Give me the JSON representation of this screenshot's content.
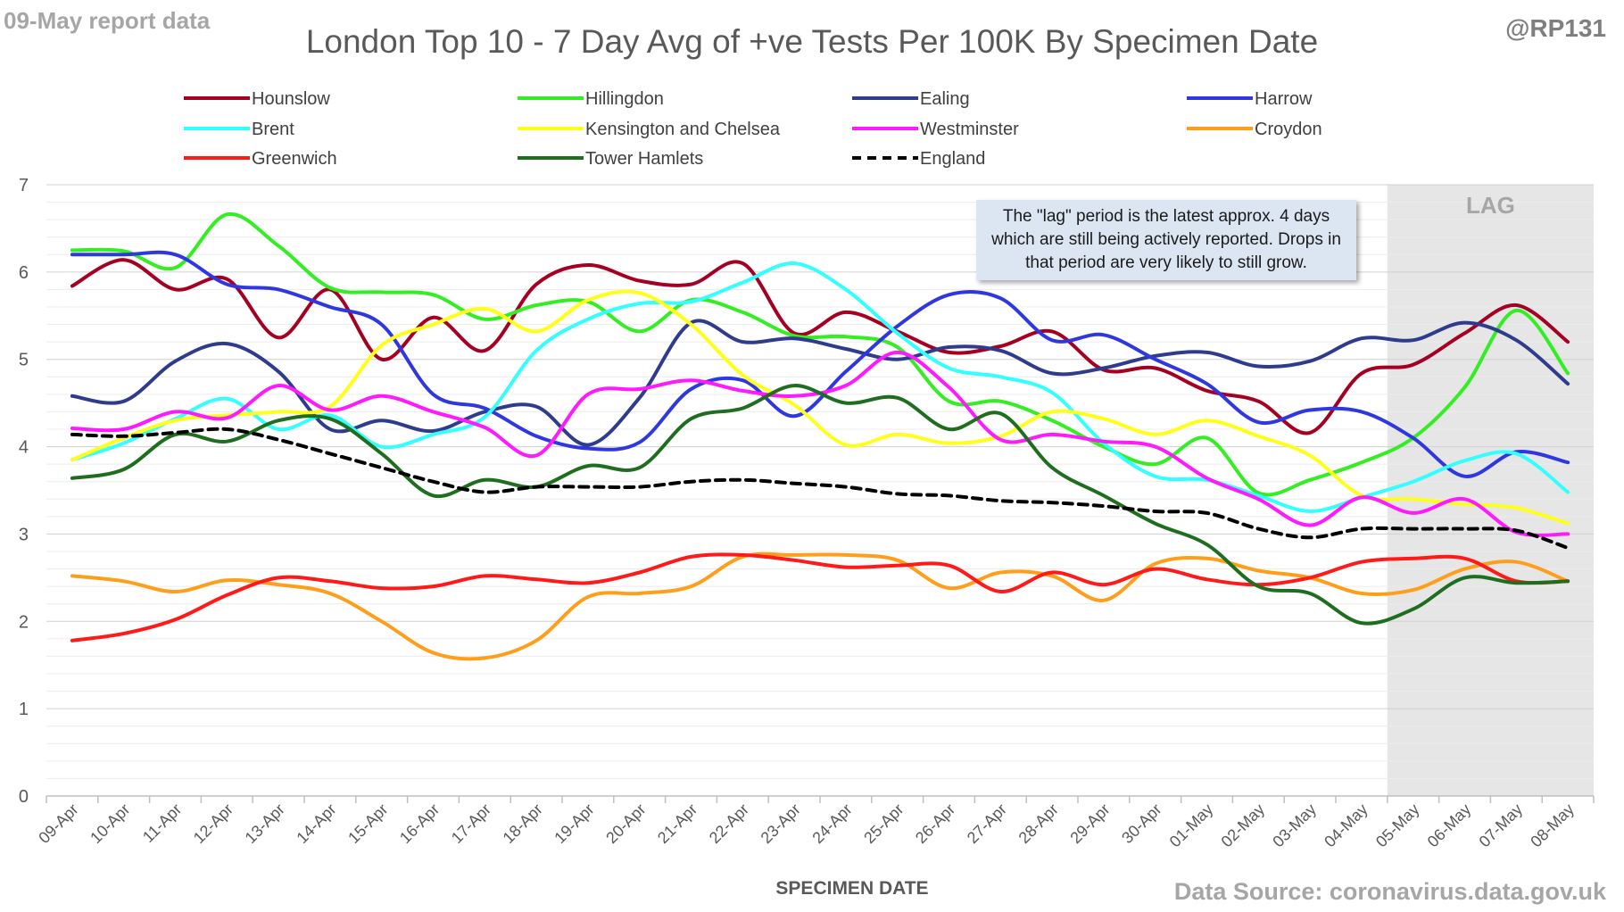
{
  "header": {
    "report_label": "09-May report data",
    "handle": "@RP131",
    "source": "Data Source: coronavirus.data.gov.uk"
  },
  "annotation": "The \"lag\" period is the latest approx. 4 days which are still being actively reported. Drops in that period are very likely to still grow.",
  "chart_data": {
    "type": "line",
    "title": "London Top 10 - 7 Day Avg of +ve Tests Per 100K By Specimen Date",
    "xlabel": "SPECIMEN DATE",
    "ylabel": "",
    "ylim": [
      0,
      7
    ],
    "ytick_step": 1,
    "grid": true,
    "legend_position": "top",
    "lag_region": {
      "label": "LAG",
      "from": "05-May",
      "to": "08-May",
      "color": "#e6e6e6"
    },
    "categories": [
      "09-Apr",
      "10-Apr",
      "11-Apr",
      "12-Apr",
      "13-Apr",
      "14-Apr",
      "15-Apr",
      "16-Apr",
      "17-Apr",
      "18-Apr",
      "19-Apr",
      "20-Apr",
      "21-Apr",
      "22-Apr",
      "23-Apr",
      "24-Apr",
      "25-Apr",
      "26-Apr",
      "27-Apr",
      "28-Apr",
      "29-Apr",
      "30-Apr",
      "01-May",
      "02-May",
      "03-May",
      "04-May",
      "05-May",
      "06-May",
      "07-May",
      "08-May"
    ],
    "series": [
      {
        "name": "Hounslow",
        "color": "#a50021",
        "dashed": false,
        "values": [
          5.84,
          6.14,
          5.8,
          5.92,
          5.25,
          5.8,
          5.0,
          5.48,
          5.1,
          5.86,
          6.08,
          5.9,
          5.86,
          6.1,
          5.3,
          5.54,
          5.32,
          5.08,
          5.15,
          5.32,
          4.88,
          4.9,
          4.64,
          4.52,
          4.16,
          4.84,
          4.94,
          5.3,
          5.62,
          5.2
        ]
      },
      {
        "name": "Hillingdon",
        "color": "#33ee22",
        "dashed": false,
        "values": [
          6.25,
          6.24,
          6.05,
          6.66,
          6.3,
          5.82,
          5.77,
          5.74,
          5.46,
          5.62,
          5.66,
          5.32,
          5.68,
          5.54,
          5.27,
          5.26,
          5.14,
          4.52,
          4.52,
          4.3,
          4.0,
          3.8,
          4.1,
          3.47,
          3.62,
          3.82,
          4.1,
          4.68,
          5.56,
          4.84
        ]
      },
      {
        "name": "Ealing",
        "color": "#2f3b8c",
        "dashed": false,
        "values": [
          4.58,
          4.52,
          4.98,
          5.18,
          4.86,
          4.2,
          4.3,
          4.18,
          4.4,
          4.46,
          4.02,
          4.56,
          5.42,
          5.2,
          5.24,
          5.12,
          5.0,
          5.14,
          5.1,
          4.84,
          4.9,
          5.04,
          5.08,
          4.92,
          4.98,
          5.24,
          5.22,
          5.42,
          5.22,
          4.72
        ]
      },
      {
        "name": "Harrow",
        "color": "#2f38e0",
        "dashed": false,
        "values": [
          6.2,
          6.2,
          6.2,
          5.86,
          5.8,
          5.6,
          5.4,
          4.6,
          4.44,
          4.12,
          3.98,
          4.05,
          4.66,
          4.76,
          4.35,
          4.86,
          5.38,
          5.74,
          5.7,
          5.22,
          5.28,
          5.0,
          4.72,
          4.28,
          4.42,
          4.4,
          4.1,
          3.66,
          3.94,
          3.82
        ]
      },
      {
        "name": "Brent",
        "color": "#33ffff",
        "dashed": false,
        "values": [
          3.85,
          4.04,
          4.32,
          4.55,
          4.2,
          4.36,
          4.0,
          4.14,
          4.34,
          5.1,
          5.46,
          5.64,
          5.66,
          5.88,
          6.1,
          5.8,
          5.3,
          4.9,
          4.8,
          4.62,
          4.04,
          3.66,
          3.62,
          3.44,
          3.26,
          3.42,
          3.6,
          3.84,
          3.92,
          3.48
        ]
      },
      {
        "name": "Kensington and Chelsea",
        "color": "#ffff19",
        "dashed": false,
        "values": [
          3.85,
          4.1,
          4.3,
          4.36,
          4.4,
          4.46,
          5.16,
          5.4,
          5.58,
          5.32,
          5.68,
          5.76,
          5.4,
          4.82,
          4.48,
          4.02,
          4.14,
          4.04,
          4.12,
          4.4,
          4.32,
          4.14,
          4.3,
          4.12,
          3.9,
          3.44,
          3.4,
          3.34,
          3.3,
          3.12
        ]
      },
      {
        "name": "Westminster",
        "color": "#ff19ff",
        "dashed": false,
        "values": [
          4.21,
          4.2,
          4.4,
          4.33,
          4.7,
          4.42,
          4.58,
          4.4,
          4.22,
          3.9,
          4.6,
          4.66,
          4.76,
          4.64,
          4.58,
          4.7,
          5.08,
          4.68,
          4.08,
          4.14,
          4.06,
          4.0,
          3.64,
          3.4,
          3.1,
          3.42,
          3.24,
          3.4,
          3.02,
          3.0
        ]
      },
      {
        "name": "Croydon",
        "color": "#ff9e1b",
        "dashed": false,
        "values": [
          2.52,
          2.46,
          2.34,
          2.47,
          2.42,
          2.32,
          2.0,
          1.64,
          1.58,
          1.78,
          2.28,
          2.32,
          2.4,
          2.74,
          2.76,
          2.76,
          2.7,
          2.38,
          2.56,
          2.52,
          2.24,
          2.66,
          2.72,
          2.58,
          2.5,
          2.32,
          2.36,
          2.6,
          2.68,
          2.46
        ]
      },
      {
        "name": "Greenwich",
        "color": "#ff1a1a",
        "dashed": false,
        "values": [
          1.78,
          1.86,
          2.02,
          2.3,
          2.5,
          2.46,
          2.38,
          2.4,
          2.52,
          2.48,
          2.44,
          2.56,
          2.74,
          2.76,
          2.7,
          2.62,
          2.64,
          2.64,
          2.34,
          2.56,
          2.42,
          2.6,
          2.48,
          2.42,
          2.5,
          2.68,
          2.72,
          2.72,
          2.46,
          2.46
        ]
      },
      {
        "name": "Tower Hamlets",
        "color": "#1f6e1f",
        "dashed": false,
        "values": [
          3.64,
          3.74,
          4.14,
          4.06,
          4.3,
          4.32,
          3.92,
          3.44,
          3.62,
          3.54,
          3.78,
          3.76,
          4.32,
          4.44,
          4.7,
          4.5,
          4.56,
          4.2,
          4.38,
          3.76,
          3.44,
          3.12,
          2.88,
          2.4,
          2.32,
          1.98,
          2.14,
          2.5,
          2.44,
          2.46
        ]
      },
      {
        "name": "England",
        "color": "#000000",
        "dashed": true,
        "values": [
          4.14,
          4.12,
          4.16,
          4.2,
          4.08,
          3.92,
          3.76,
          3.6,
          3.48,
          3.54,
          3.54,
          3.54,
          3.6,
          3.62,
          3.58,
          3.54,
          3.46,
          3.44,
          3.38,
          3.36,
          3.32,
          3.26,
          3.24,
          3.06,
          2.96,
          3.06,
          3.06,
          3.06,
          3.04,
          2.84
        ]
      }
    ]
  }
}
